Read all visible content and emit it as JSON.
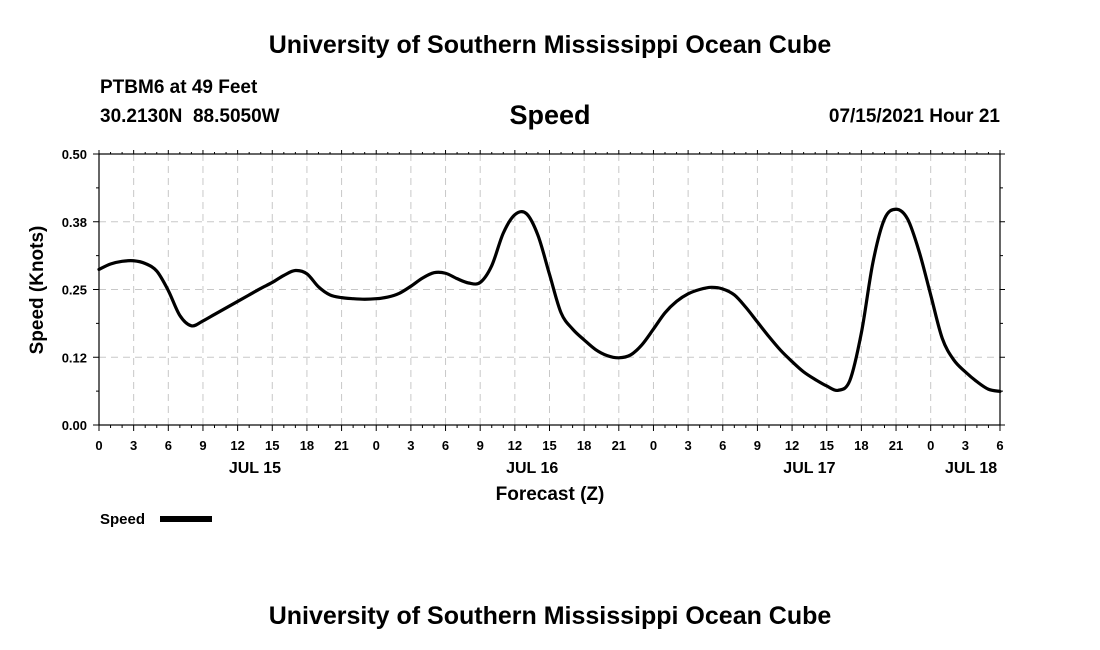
{
  "header": {
    "title": "University of Southern Mississippi Ocean Cube",
    "station": "PTBM6 at 49 Feet",
    "coords": "30.2130N  88.5050W",
    "variable": "Speed",
    "datetime": "07/15/2021 Hour 21"
  },
  "footer": {
    "title": "University of Southern Mississippi Ocean Cube"
  },
  "legend": {
    "label": "Speed"
  },
  "chart_data": {
    "type": "line",
    "title": "Speed",
    "xlabel": "Forecast (Z)",
    "ylabel": "Speed (Knots)",
    "xlim": [
      0,
      78
    ],
    "ylim": [
      0,
      0.5
    ],
    "grid": true,
    "legend_position": "bottom-left",
    "y_ticks": [
      {
        "value": 0,
        "label": "0.00"
      },
      {
        "value": 0.125,
        "label": "0.12"
      },
      {
        "value": 0.25,
        "label": "0.25"
      },
      {
        "value": 0.375,
        "label": "0.38"
      },
      {
        "value": 0.5,
        "label": "0.50"
      }
    ],
    "x_tick_labels": [
      "0",
      "3",
      "6",
      "9",
      "12",
      "15",
      "18",
      "21",
      "0",
      "3",
      "6",
      "9",
      "12",
      "15",
      "18",
      "21",
      "0",
      "3",
      "6",
      "9",
      "12",
      "15",
      "18",
      "21",
      "0",
      "3",
      "6"
    ],
    "date_labels": [
      {
        "hour": 13.5,
        "label": "JUL 15"
      },
      {
        "hour": 37.5,
        "label": "JUL 16"
      },
      {
        "hour": 61.5,
        "label": "JUL 17"
      },
      {
        "hour": 75.5,
        "label": "JUL 18"
      }
    ],
    "series": [
      {
        "name": "Speed",
        "color": "#000000",
        "x": [
          0,
          1,
          2,
          3,
          4,
          5,
          6,
          7,
          8,
          9,
          10,
          11,
          12,
          13,
          14,
          15,
          16,
          17,
          18,
          19,
          20,
          21,
          22,
          23,
          24,
          25,
          26,
          27,
          28,
          29,
          30,
          31,
          32,
          33,
          34,
          35,
          36,
          37,
          38,
          39,
          40,
          41,
          42,
          43,
          44,
          45,
          46,
          47,
          48,
          49,
          50,
          51,
          52,
          53,
          54,
          55,
          56,
          57,
          58,
          59,
          60,
          61,
          62,
          63,
          64,
          65,
          66,
          67,
          68,
          69,
          70,
          71,
          72,
          73,
          74,
          75,
          76,
          77,
          78
        ],
        "values": [
          0.287,
          0.297,
          0.302,
          0.303,
          0.298,
          0.284,
          0.248,
          0.202,
          0.183,
          0.192,
          0.204,
          0.216,
          0.228,
          0.24,
          0.252,
          0.263,
          0.276,
          0.285,
          0.279,
          0.255,
          0.24,
          0.235,
          0.233,
          0.232,
          0.233,
          0.236,
          0.243,
          0.256,
          0.271,
          0.281,
          0.28,
          0.27,
          0.262,
          0.263,
          0.294,
          0.354,
          0.388,
          0.39,
          0.35,
          0.278,
          0.207,
          0.177,
          0.157,
          0.139,
          0.128,
          0.124,
          0.129,
          0.148,
          0.177,
          0.207,
          0.228,
          0.242,
          0.25,
          0.254,
          0.251,
          0.24,
          0.217,
          0.19,
          0.163,
          0.138,
          0.117,
          0.098,
          0.084,
          0.072,
          0.064,
          0.082,
          0.17,
          0.3,
          0.38,
          0.398,
          0.38,
          0.32,
          0.24,
          0.16,
          0.12,
          0.098,
          0.08,
          0.066,
          0.062
        ]
      }
    ]
  }
}
